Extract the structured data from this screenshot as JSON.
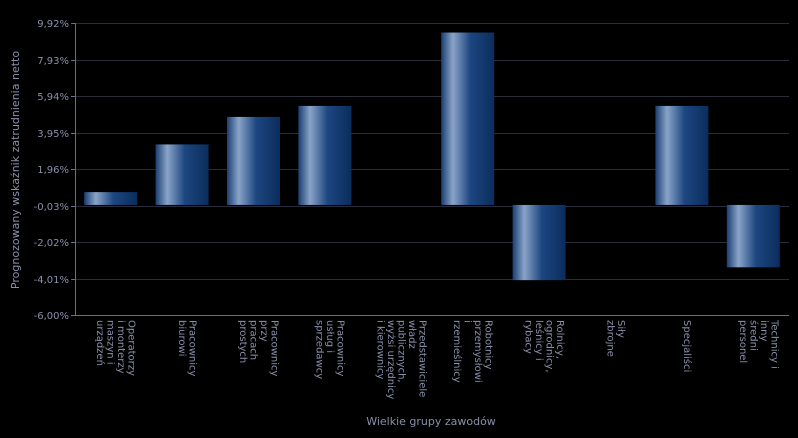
{
  "chart_data": {
    "type": "bar",
    "xlabel": "Wielkie grupy zawodów",
    "ylabel": "Prognozowany wskaźnik zatrudnienia netto",
    "ylim": [
      -6.0,
      9.92
    ],
    "yticks": [
      9.92,
      7.93,
      5.94,
      3.95,
      1.96,
      -0.03,
      -2.02,
      -4.01,
      -6.0
    ],
    "ytick_labels": [
      "9,92%",
      "7,93%",
      "5,94%",
      "3,95%",
      "1,96%",
      "-0,03%",
      "-2,02%",
      "-4,01%",
      "-6,00%"
    ],
    "grid": true,
    "colors": {
      "bar_dark": "#0a2d5c",
      "bar_light": "#8aa4c8",
      "grid": "#2a2c3a",
      "axis": "#6a6e88",
      "text": "#8a8fa8"
    },
    "categories": [
      [
        "Operatorzy",
        "i monterzy",
        "maszyn i",
        "urządzeń"
      ],
      [
        "Pracownicy",
        "biurowi"
      ],
      [
        "Pracownicy",
        "przy",
        "pracach",
        "prostych"
      ],
      [
        "Pracownicy",
        "usług i",
        "sprzedawcy"
      ],
      [
        "Przedstawiciele",
        "władz",
        "publicznych,",
        "wyżsi urzędnicy",
        "i kierownicy"
      ],
      [
        "Robotnicy",
        "przemysłowi",
        "i",
        "rzemieślnicy"
      ],
      [
        "Rolnicy,",
        "ogrodnicy,",
        "leśnicy i",
        "rybacy"
      ],
      [
        "Siły",
        "zbrojne"
      ],
      [
        "Specjaliści"
      ],
      [
        "Technicy i",
        "inny",
        "średni",
        "personel"
      ]
    ],
    "values": [
      0.7,
      3.3,
      4.8,
      5.4,
      0,
      9.4,
      -4.1,
      0,
      5.4,
      -3.4
    ]
  }
}
